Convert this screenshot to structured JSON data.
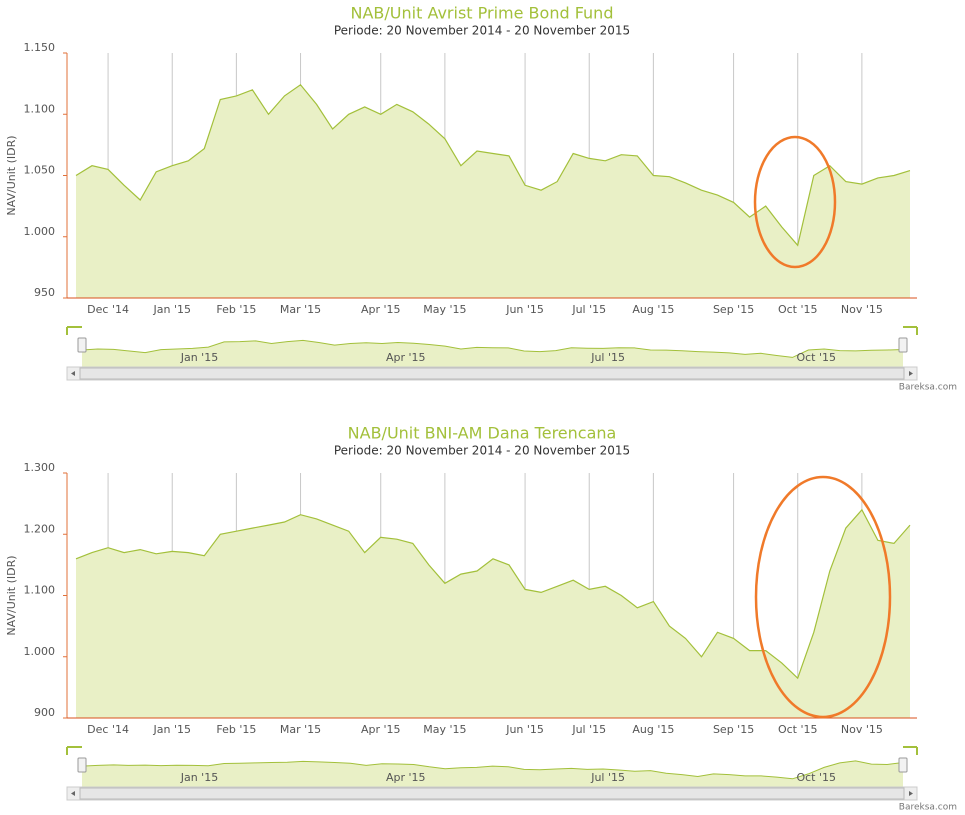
{
  "chart_data": [
    {
      "type": "area",
      "title": "NAB/Unit Avrist Prime Bond Fund",
      "subtitle": "Periode: 20 November 2014 - 20 November 2015",
      "y_label": "NAV/Unit (IDR)",
      "categories": [
        null,
        null,
        "Dec '14",
        null,
        null,
        null,
        "Jan '15",
        null,
        null,
        null,
        "Feb '15",
        null,
        null,
        null,
        "Mar '15",
        null,
        null,
        null,
        null,
        "Apr '15",
        null,
        null,
        null,
        "May '15",
        null,
        null,
        null,
        null,
        "Jun '15",
        null,
        null,
        null,
        "Jul '15",
        null,
        null,
        null,
        "Aug '15",
        null,
        null,
        null,
        null,
        "Sep '15",
        null,
        null,
        null,
        "Oct '15",
        null,
        null,
        null,
        "Nov '15",
        null,
        null,
        null
      ],
      "values": [
        1050,
        1058,
        1055,
        1042,
        1030,
        1053,
        1058,
        1062,
        1072,
        1112,
        1115,
        1120,
        1100,
        1115,
        1124,
        1108,
        1088,
        1100,
        1106,
        1100,
        1108,
        1102,
        1092,
        1080,
        1058,
        1070,
        1068,
        1066,
        1042,
        1038,
        1045,
        1068,
        1064,
        1062,
        1067,
        1066,
        1050,
        1049,
        1044,
        1038,
        1034,
        1028,
        1016,
        1025,
        1008,
        993,
        1050,
        1058,
        1045,
        1043,
        1048,
        1050,
        1054
      ],
      "color": "#a3c03b",
      "fill_color": "#e9f0c6",
      "ylim": [
        950,
        1150
      ],
      "yticks": [
        950,
        {
          "value": 1000,
          "label": "1.000"
        },
        {
          "value": 1050,
          "label": "1.050"
        },
        {
          "value": 1100,
          "label": "1.100"
        },
        {
          "value": 1150,
          "label": "1.150"
        }
      ],
      "grid_x": true,
      "navigator_labels": [
        "Jan '15",
        "Apr '15",
        "Jul '15",
        "Oct '15"
      ],
      "credits": "Bareksa.com"
    },
    {
      "type": "area",
      "title": "NAB/Unit BNI-AM Dana Terencana",
      "subtitle": "Periode: 20 November 2014 - 20 November 2015",
      "y_label": "NAV/Unit (IDR)",
      "categories": [
        null,
        null,
        "Dec '14",
        null,
        null,
        null,
        "Jan '15",
        null,
        null,
        null,
        "Feb '15",
        null,
        null,
        null,
        "Mar '15",
        null,
        null,
        null,
        null,
        "Apr '15",
        null,
        null,
        null,
        "May '15",
        null,
        null,
        null,
        null,
        "Jun '15",
        null,
        null,
        null,
        "Jul '15",
        null,
        null,
        null,
        "Aug '15",
        null,
        null,
        null,
        null,
        "Sep '15",
        null,
        null,
        null,
        "Oct '15",
        null,
        null,
        null,
        "Nov '15",
        null,
        null,
        null
      ],
      "values": [
        1160,
        1170,
        1178,
        1170,
        1175,
        1168,
        1172,
        1170,
        1165,
        1200,
        1205,
        1210,
        1215,
        1220,
        1232,
        1225,
        1215,
        1205,
        1170,
        1195,
        1192,
        1185,
        1150,
        1120,
        1135,
        1140,
        1160,
        1150,
        1110,
        1105,
        1115,
        1125,
        1110,
        1115,
        1100,
        1080,
        1090,
        1050,
        1030,
        1000,
        1040,
        1030,
        1010,
        1010,
        990,
        965,
        1040,
        1140,
        1210,
        1240,
        1190,
        1185,
        1215
      ],
      "color": "#a3c03b",
      "fill_color": "#e9f0c6",
      "ylim": [
        900,
        1300
      ],
      "yticks": [
        900,
        {
          "value": 1000,
          "label": "1.000"
        },
        {
          "value": 1100,
          "label": "1.100"
        },
        {
          "value": 1200,
          "label": "1.200"
        },
        {
          "value": 1300,
          "label": "1.300"
        }
      ],
      "grid_x": true,
      "navigator_labels": [
        "Jan '15",
        "Apr '15",
        "Jul '15",
        "Oct '15"
      ],
      "credits": "Bareksa.com"
    }
  ]
}
